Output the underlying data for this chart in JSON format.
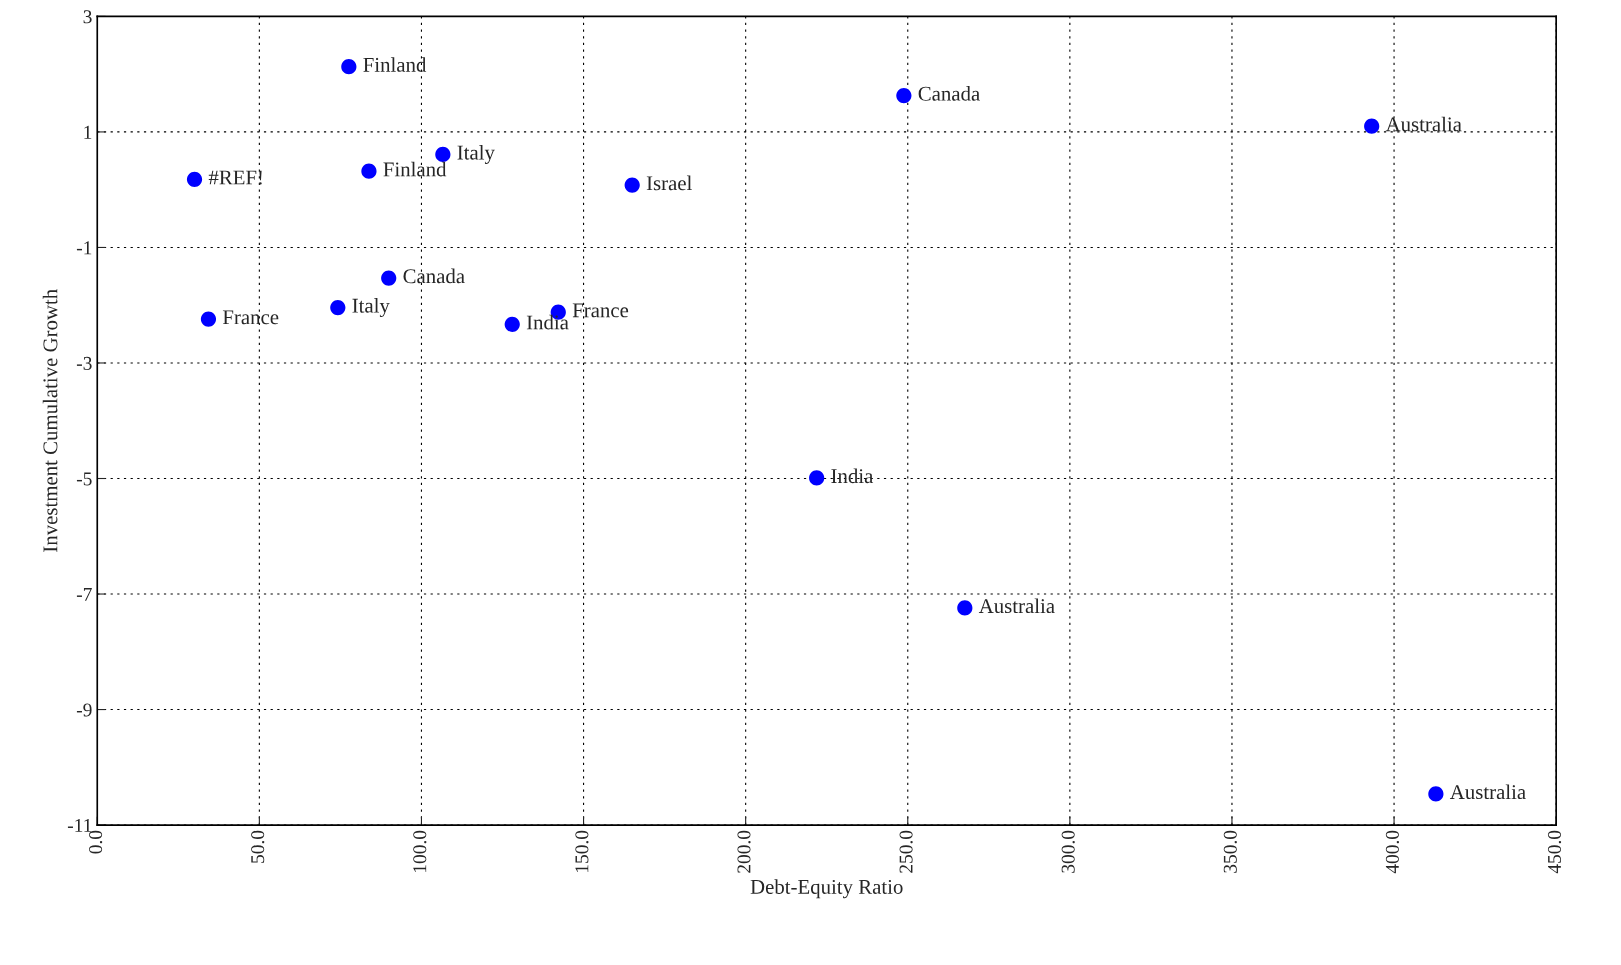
{
  "chart_data": {
    "type": "scatter",
    "xlabel": "Debt-Equity Ratio",
    "ylabel": "Investment Cumulative Growth",
    "x": [
      77.6,
      248.8,
      393.1,
      106.6,
      30.0,
      83.8,
      165.0,
      89.9,
      74.2,
      34.3,
      128.0,
      142.2,
      221.9,
      267.6,
      412.9
    ],
    "series": [
      {
        "color": "#0000ff",
        "values": [
          2.13,
          1.63,
          1.1,
          0.61,
          0.18,
          0.32,
          0.08,
          -1.53,
          -2.04,
          -2.24,
          -2.33,
          -2.12,
          -4.99,
          -7.24,
          -10.46
        ]
      }
    ],
    "annotations": [
      {
        "text": "Finland",
        "x": 77.6,
        "y": 2.13
      },
      {
        "text": "Canada",
        "x": 248.8,
        "y": 1.63
      },
      {
        "text": "Australia",
        "x": 393.1,
        "y": 1.1
      },
      {
        "text": "Italy",
        "x": 106.6,
        "y": 0.61
      },
      {
        "text": "#REF!",
        "x": 30.0,
        "y": 0.18
      },
      {
        "text": "Finland",
        "x": 83.8,
        "y": 0.32
      },
      {
        "text": "Israel",
        "x": 165.0,
        "y": 0.08
      },
      {
        "text": "Canada",
        "x": 89.9,
        "y": -1.53
      },
      {
        "text": "Italy",
        "x": 74.2,
        "y": -2.04
      },
      {
        "text": "France",
        "x": 34.3,
        "y": -2.24
      },
      {
        "text": "India",
        "x": 128.0,
        "y": -2.33
      },
      {
        "text": "France",
        "x": 142.2,
        "y": -2.12
      },
      {
        "text": "India",
        "x": 221.9,
        "y": -4.99
      },
      {
        "text": "Australia",
        "x": 267.6,
        "y": -7.24
      },
      {
        "text": "Australia",
        "x": 412.9,
        "y": -10.46
      }
    ],
    "xlim": [
      0,
      450
    ],
    "xticks": [
      {
        "value": 0,
        "label": "0.0"
      },
      {
        "value": 50,
        "label": "50.0"
      },
      {
        "value": 100,
        "label": "100.0"
      },
      {
        "value": 150,
        "label": "150.0"
      },
      {
        "value": 200,
        "label": "200.0"
      },
      {
        "value": 250,
        "label": "250.0"
      },
      {
        "value": 300,
        "label": "300.0"
      },
      {
        "value": 350,
        "label": "350.0"
      },
      {
        "value": 400,
        "label": "400.0"
      },
      {
        "value": 450,
        "label": "450.0"
      }
    ],
    "ylim": [
      -11,
      3
    ],
    "yticks": [
      3,
      1,
      -1,
      -3,
      -5,
      -7,
      -9,
      -11
    ],
    "grid": true,
    "marker": "circle",
    "legend": false
  }
}
